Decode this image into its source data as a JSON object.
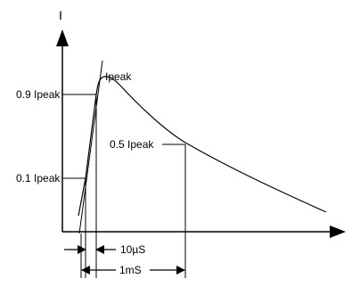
{
  "labels": {
    "y_axis": "I",
    "peak": "Ipeak",
    "level_90": "0.9 Ipeak",
    "level_50": "0.5 Ipeak",
    "level_10": "0.1 Ipeak",
    "rise_time": "10µS",
    "decay_time": "1mS"
  },
  "colors": {
    "line": "#000000",
    "background": "#ffffff"
  }
}
